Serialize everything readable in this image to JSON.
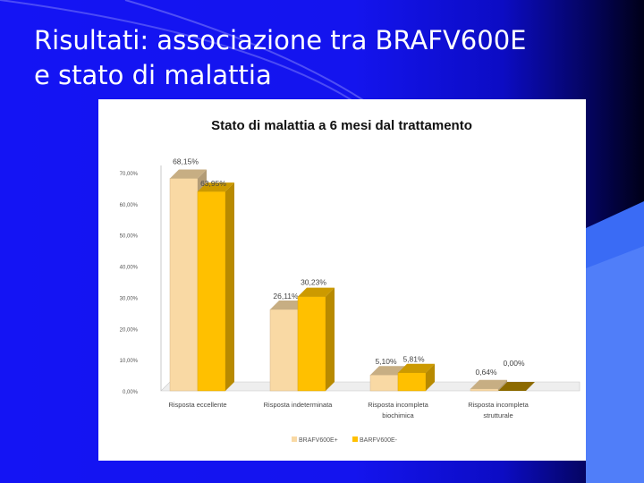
{
  "slide": {
    "title_lines": [
      "Risultati: associazione tra BRAFV600E",
      "e stato di malattia"
    ]
  },
  "colors": {
    "background": "#1414f0",
    "panel": "#ffffff",
    "series_positive": "#f9d9a4",
    "series_negative": "#ffc000"
  },
  "chart_data": {
    "type": "bar",
    "title": "Stato di malattia a 6 mesi dal trattamento",
    "categories": [
      [
        "Risposta eccellente"
      ],
      [
        "Risposta indeterminata"
      ],
      [
        "Risposta incompleta",
        "biochimica"
      ],
      [
        "Risposta incompleta",
        "strutturale"
      ]
    ],
    "series": [
      {
        "name": "BRAFV600E+",
        "values": [
          68.15,
          26.11,
          5.1,
          0.64
        ],
        "labels": [
          "68,15%",
          "26,11%",
          "5,10%",
          "0,64%"
        ]
      },
      {
        "name": "BARFV600E-",
        "values": [
          63.95,
          30.23,
          5.81,
          0.0
        ],
        "labels": [
          "63,95%",
          "30,23%",
          "5,81%",
          "0,00%"
        ]
      }
    ],
    "y_ticks": [
      "0,00%",
      "10,00%",
      "20,00%",
      "30,00%",
      "40,00%",
      "50,00%",
      "60,00%",
      "70,00%"
    ],
    "ylim": [
      0,
      70
    ],
    "grid": false,
    "legend_position": "bottom",
    "style": "3d-bar"
  }
}
